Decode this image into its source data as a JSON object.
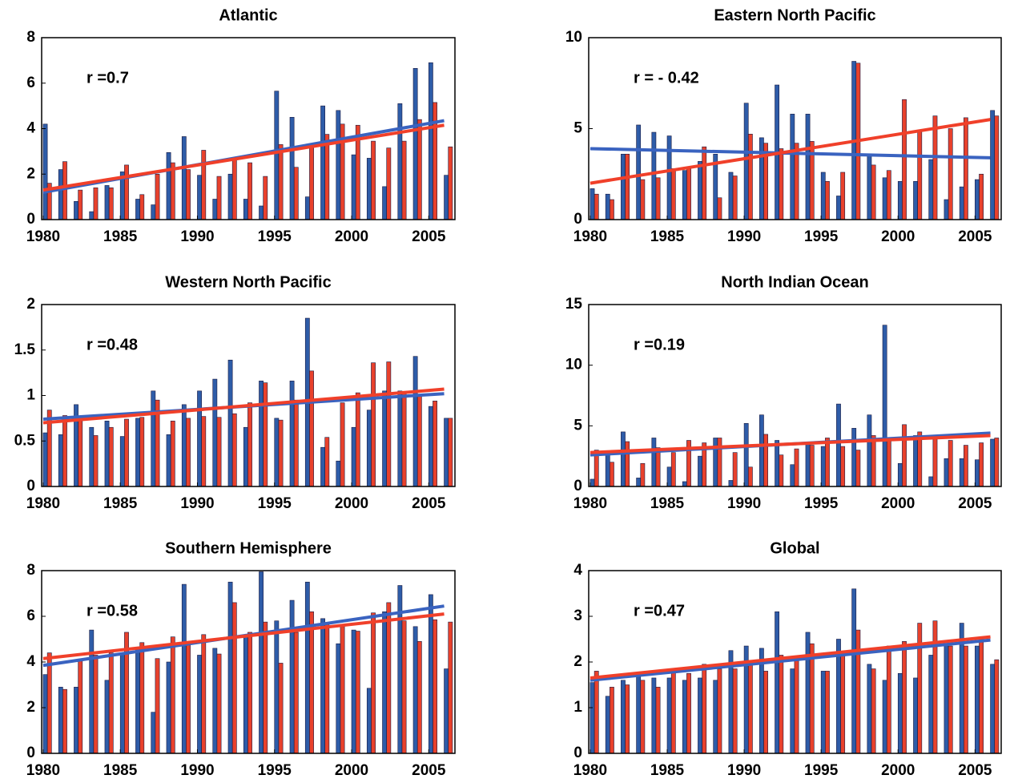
{
  "chart_data": [
    {
      "type": "bar",
      "title": "Atlantic",
      "annotation": "r =0.7",
      "x": [
        1980,
        1981,
        1982,
        1983,
        1984,
        1985,
        1986,
        1987,
        1988,
        1989,
        1990,
        1991,
        1992,
        1993,
        1994,
        1995,
        1996,
        1997,
        1998,
        1999,
        2000,
        2001,
        2002,
        2003,
        2004,
        2005,
        2006
      ],
      "xlim": [
        1979.9,
        2006.7
      ],
      "xticks": [
        1980,
        1985,
        1990,
        1995,
        2000,
        2005
      ],
      "ylim": [
        0,
        8
      ],
      "yticks": [
        0,
        2,
        4,
        6,
        8
      ],
      "series": [
        {
          "color": "#2e5ca8",
          "values": [
            4.2,
            2.2,
            0.8,
            0.35,
            1.5,
            2.1,
            0.9,
            0.65,
            2.95,
            3.65,
            1.95,
            0.9,
            2.0,
            0.9,
            0.6,
            5.65,
            4.5,
            1.0,
            5.0,
            4.8,
            2.85,
            2.7,
            1.45,
            5.1,
            6.65,
            6.9,
            1.95
          ]
        },
        {
          "color": "#e8412c",
          "values": [
            1.6,
            2.55,
            1.3,
            1.4,
            1.4,
            2.4,
            1.1,
            2.0,
            2.5,
            2.2,
            3.05,
            1.9,
            2.7,
            2.5,
            1.9,
            3.3,
            2.3,
            3.2,
            3.75,
            4.2,
            4.15,
            3.45,
            3.15,
            3.45,
            4.4,
            5.15,
            3.2
          ]
        }
      ],
      "trend_lines": [
        {
          "color": "#3a63c0",
          "x": [
            1980,
            2006
          ],
          "values": [
            1.2,
            4.35
          ]
        },
        {
          "color": "#f0402a",
          "x": [
            1980,
            2006
          ],
          "values": [
            1.3,
            4.15
          ]
        }
      ]
    },
    {
      "type": "bar",
      "title": "Eastern North Pacific",
      "annotation": "r = - 0.42",
      "x": [
        1980,
        1981,
        1982,
        1983,
        1984,
        1985,
        1986,
        1987,
        1988,
        1989,
        1990,
        1991,
        1992,
        1993,
        1994,
        1995,
        1996,
        1997,
        1998,
        1999,
        2000,
        2001,
        2002,
        2003,
        2004,
        2005,
        2006
      ],
      "xlim": [
        1979.9,
        2006.7
      ],
      "xticks": [
        1980,
        1985,
        1990,
        1995,
        2000,
        2005
      ],
      "ylim": [
        0,
        10
      ],
      "yticks": [
        0,
        5,
        10
      ],
      "series": [
        {
          "color": "#2e5ca8",
          "values": [
            1.7,
            1.4,
            3.6,
            5.2,
            4.8,
            4.6,
            2.7,
            3.2,
            3.6,
            2.6,
            6.4,
            4.5,
            7.4,
            5.8,
            5.8,
            2.6,
            1.3,
            8.7,
            3.5,
            2.3,
            2.1,
            2.1,
            3.3,
            1.1,
            1.8,
            2.2,
            6.0
          ]
        },
        {
          "color": "#e8412c",
          "values": [
            1.4,
            1.1,
            3.6,
            2.2,
            2.3,
            2.8,
            2.8,
            4.0,
            1.2,
            2.4,
            4.7,
            4.2,
            3.9,
            4.2,
            4.3,
            2.1,
            2.6,
            8.6,
            3.0,
            2.7,
            6.6,
            4.9,
            5.7,
            5.0,
            5.6,
            2.5,
            5.7
          ]
        }
      ],
      "trend_lines": [
        {
          "color": "#3a63c0",
          "x": [
            1980,
            2006
          ],
          "values": [
            3.9,
            3.4
          ]
        },
        {
          "color": "#f0402a",
          "x": [
            1980,
            2006
          ],
          "values": [
            2.0,
            5.5
          ]
        }
      ]
    },
    {
      "type": "bar",
      "title": "Western North Pacific",
      "annotation": "r =0.48",
      "x": [
        1980,
        1981,
        1982,
        1983,
        1984,
        1985,
        1986,
        1987,
        1988,
        1989,
        1990,
        1991,
        1992,
        1993,
        1994,
        1995,
        1996,
        1997,
        1998,
        1999,
        2000,
        2001,
        2002,
        2003,
        2004,
        2005,
        2006
      ],
      "xlim": [
        1979.9,
        2006.7
      ],
      "xticks": [
        1980,
        1985,
        1990,
        1995,
        2000,
        2005
      ],
      "ylim": [
        0,
        2
      ],
      "yticks": [
        0,
        0.5,
        1,
        1.5,
        2
      ],
      "series": [
        {
          "color": "#2e5ca8",
          "values": [
            0.59,
            0.57,
            0.9,
            0.65,
            0.72,
            0.55,
            0.75,
            1.05,
            0.57,
            0.9,
            1.05,
            1.18,
            1.39,
            0.65,
            1.16,
            0.75,
            1.16,
            1.85,
            0.43,
            0.28,
            0.65,
            0.84,
            1.05,
            1.05,
            1.43,
            0.88,
            0.75
          ]
        },
        {
          "color": "#e8412c",
          "values": [
            0.84,
            0.78,
            0.76,
            0.56,
            0.65,
            0.74,
            0.76,
            0.95,
            0.72,
            0.75,
            0.77,
            0.76,
            0.8,
            0.92,
            1.14,
            0.73,
            0.95,
            1.27,
            0.54,
            0.92,
            1.03,
            1.36,
            1.37,
            1.03,
            1.0,
            0.94,
            0.75
          ]
        }
      ],
      "trend_lines": [
        {
          "color": "#3a63c0",
          "x": [
            1980,
            2006
          ],
          "values": [
            0.74,
            1.02
          ]
        },
        {
          "color": "#f0402a",
          "x": [
            1980,
            2006
          ],
          "values": [
            0.7,
            1.07
          ]
        }
      ]
    },
    {
      "type": "bar",
      "title": "North Indian Ocean",
      "annotation": "r =0.19",
      "x": [
        1980,
        1981,
        1982,
        1983,
        1984,
        1985,
        1986,
        1987,
        1988,
        1989,
        1990,
        1991,
        1992,
        1993,
        1994,
        1995,
        1996,
        1997,
        1998,
        1999,
        2000,
        2001,
        2002,
        2003,
        2004,
        2005,
        2006
      ],
      "xlim": [
        1979.9,
        2006.7
      ],
      "xticks": [
        1980,
        1985,
        1990,
        1995,
        2000,
        2005
      ],
      "ylim": [
        0,
        15
      ],
      "yticks": [
        0,
        5,
        10,
        15
      ],
      "series": [
        {
          "color": "#2e5ca8",
          "values": [
            0.6,
            2.9,
            4.5,
            0.7,
            4.0,
            1.6,
            0.4,
            2.5,
            4.0,
            0.5,
            5.2,
            5.9,
            3.8,
            1.8,
            3.6,
            3.3,
            6.8,
            4.8,
            5.9,
            13.3,
            1.9,
            4.2,
            0.8,
            2.3,
            2.3,
            2.2,
            3.9
          ]
        },
        {
          "color": "#e8412c",
          "values": [
            3.0,
            2.0,
            3.7,
            1.9,
            3.2,
            2.8,
            3.8,
            3.6,
            4.0,
            2.8,
            1.6,
            4.3,
            2.6,
            3.1,
            3.4,
            4.0,
            3.3,
            3.0,
            4.2,
            4.0,
            5.1,
            4.5,
            4.2,
            3.8,
            3.4,
            3.6,
            4.0
          ]
        }
      ],
      "trend_lines": [
        {
          "color": "#3a63c0",
          "x": [
            1980,
            2006
          ],
          "values": [
            2.6,
            4.4
          ]
        },
        {
          "color": "#f0402a",
          "x": [
            1980,
            2006
          ],
          "values": [
            2.8,
            4.2
          ]
        }
      ]
    },
    {
      "type": "bar",
      "title": "Southern Hemisphere",
      "annotation": "r =0.58",
      "x": [
        1980,
        1981,
        1982,
        1983,
        1984,
        1985,
        1986,
        1987,
        1988,
        1989,
        1990,
        1991,
        1992,
        1993,
        1994,
        1995,
        1996,
        1997,
        1998,
        1999,
        2000,
        2001,
        2002,
        2003,
        2004,
        2005,
        2006
      ],
      "xlim": [
        1979.9,
        2006.7
      ],
      "xticks": [
        1980,
        1985,
        1990,
        1995,
        2000,
        2005
      ],
      "ylim": [
        0,
        8
      ],
      "yticks": [
        0,
        2,
        4,
        6,
        8
      ],
      "series": [
        {
          "color": "#2e5ca8",
          "values": [
            3.45,
            2.9,
            2.9,
            5.4,
            3.2,
            4.4,
            4.6,
            1.8,
            4.0,
            7.4,
            4.3,
            4.6,
            7.5,
            5.2,
            7.95,
            5.8,
            6.7,
            7.5,
            5.9,
            4.8,
            5.4,
            2.85,
            6.2,
            7.35,
            5.55,
            6.95,
            3.7
          ]
        },
        {
          "color": "#e8412c",
          "values": [
            4.4,
            2.8,
            4.05,
            4.3,
            4.4,
            5.3,
            4.85,
            4.15,
            5.1,
            4.9,
            5.2,
            4.35,
            6.6,
            5.3,
            5.75,
            3.95,
            5.3,
            6.2,
            5.7,
            5.55,
            5.35,
            6.15,
            6.6,
            5.8,
            4.9,
            5.85,
            5.75
          ]
        }
      ],
      "trend_lines": [
        {
          "color": "#3a63c0",
          "x": [
            1980,
            2006
          ],
          "values": [
            3.85,
            6.45
          ]
        },
        {
          "color": "#f0402a",
          "x": [
            1980,
            2006
          ],
          "values": [
            4.15,
            6.1
          ]
        }
      ]
    },
    {
      "type": "bar",
      "title": "Global",
      "annotation": "r =0.47",
      "x": [
        1980,
        1981,
        1982,
        1983,
        1984,
        1985,
        1986,
        1987,
        1988,
        1989,
        1990,
        1991,
        1992,
        1993,
        1994,
        1995,
        1996,
        1997,
        1998,
        1999,
        2000,
        2001,
        2002,
        2003,
        2004,
        2005,
        2006
      ],
      "xlim": [
        1979.9,
        2006.7
      ],
      "xticks": [
        1980,
        1985,
        1990,
        1995,
        2000,
        2005
      ],
      "ylim": [
        0,
        4
      ],
      "yticks": [
        0,
        1,
        2,
        3,
        4
      ],
      "series": [
        {
          "color": "#2e5ca8",
          "values": [
            1.55,
            1.25,
            1.6,
            1.75,
            1.65,
            1.65,
            1.6,
            1.65,
            1.6,
            2.25,
            2.35,
            2.3,
            3.1,
            1.85,
            2.65,
            1.8,
            2.5,
            3.6,
            1.95,
            1.6,
            1.75,
            1.65,
            2.15,
            2.4,
            2.85,
            2.35,
            1.95
          ]
        },
        {
          "color": "#e8412c",
          "values": [
            1.8,
            1.45,
            1.5,
            1.6,
            1.45,
            1.85,
            1.75,
            1.95,
            1.85,
            1.85,
            1.95,
            1.8,
            2.15,
            2.1,
            2.4,
            1.8,
            2.2,
            2.7,
            1.85,
            2.35,
            2.45,
            2.85,
            2.9,
            2.35,
            2.35,
            2.5,
            2.05
          ]
        }
      ],
      "trend_lines": [
        {
          "color": "#3a63c0",
          "x": [
            1980,
            2006
          ],
          "values": [
            1.6,
            2.48
          ]
        },
        {
          "color": "#f0402a",
          "x": [
            1980,
            2006
          ],
          "values": [
            1.65,
            2.55
          ]
        }
      ]
    }
  ]
}
